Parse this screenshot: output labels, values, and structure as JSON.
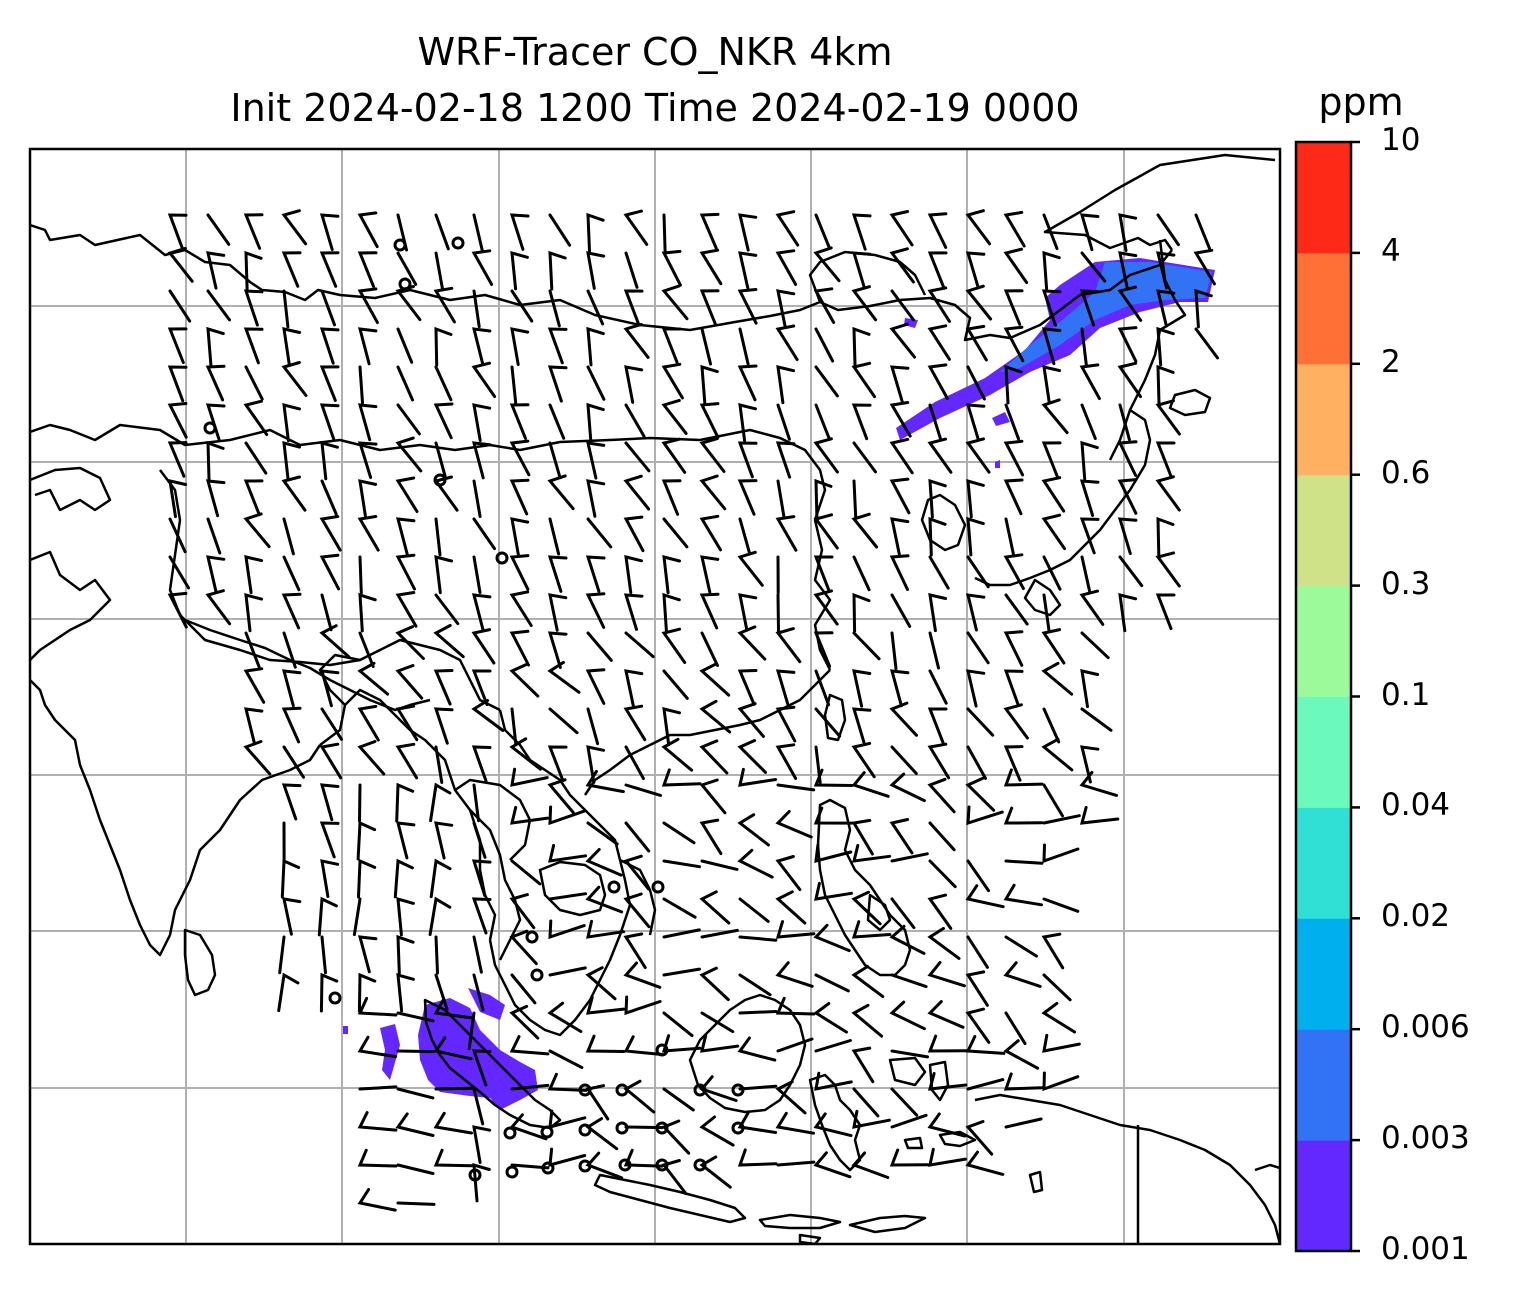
{
  "title": {
    "line1": "WRF-Tracer CO_NKR 4km",
    "line2": "Init 2024-02-18 1200 Time 2024-02-19 0000"
  },
  "colorbar": {
    "unit": "ppm",
    "levels": [
      "0.001",
      "0.003",
      "0.006",
      "0.02",
      "0.04",
      "0.1",
      "0.3",
      "0.6",
      "2",
      "4",
      "10"
    ],
    "colors": [
      "#6328ff",
      "#3273f5",
      "#00b0ee",
      "#31e0d4",
      "#6cf9be",
      "#9cfa9a",
      "#cfe288",
      "#ffb060",
      "#ff7036",
      "#ff2918"
    ]
  },
  "map": {
    "gridlines": true,
    "coastline_color": "#000000",
    "gridline_color": "#b0b0b0",
    "plume_color": "#6328ff",
    "plume_edge_color": "#3273f5"
  }
}
